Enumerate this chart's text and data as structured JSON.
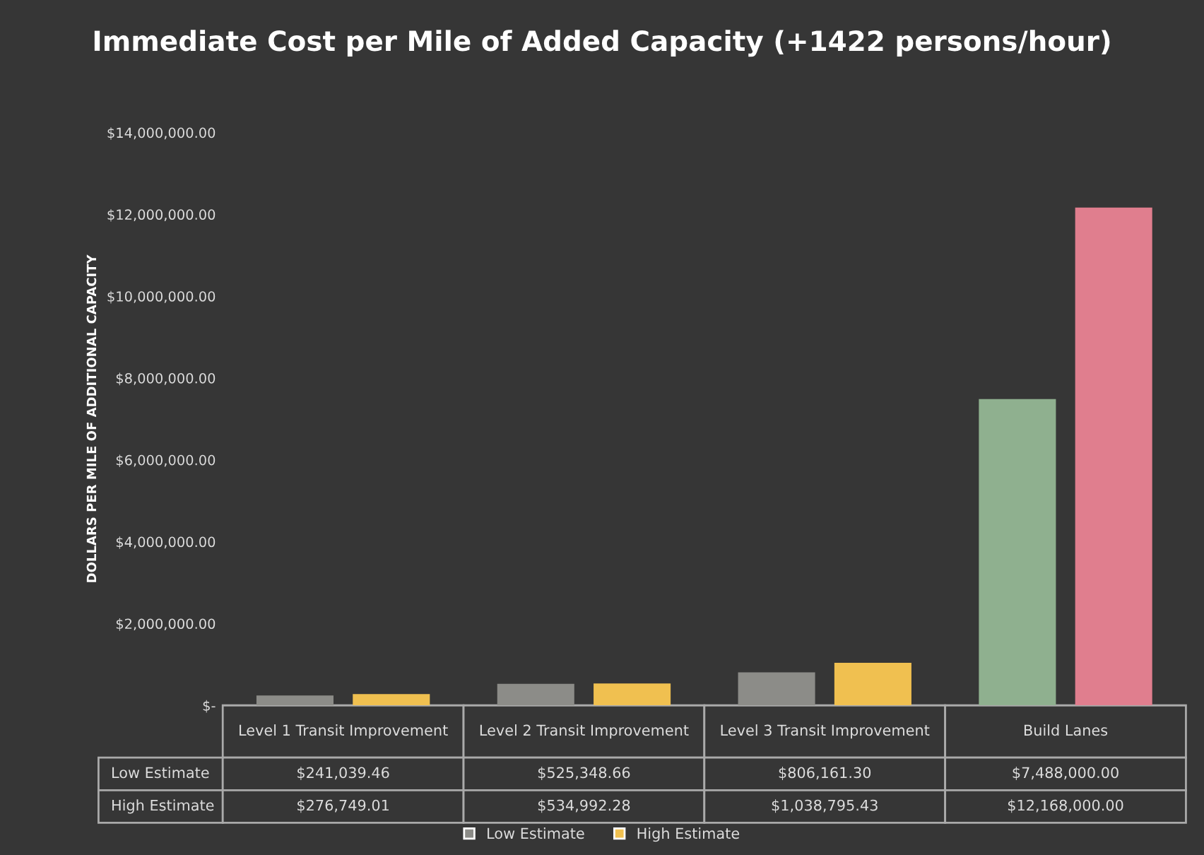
{
  "chart_data": {
    "type": "bar",
    "title": "Immediate Cost per Mile of Added Capacity (+1422 persons/hour)",
    "ylabel": "DOLLARS PER MILE OF ADDITIONAL CAPACITY",
    "categories": [
      "Level 1 Transit Improvement",
      "Level 2 Transit Improvement",
      "Level 3 Transit Improvement",
      "Build Lanes"
    ],
    "series": [
      {
        "name": "Low Estimate",
        "color": "#8c8c88",
        "colors": [
          "#8c8c88",
          "#8c8c88",
          "#8c8c88",
          "#8fb08f"
        ],
        "values": [
          241039.46,
          525348.66,
          806161.3,
          7488000.0
        ],
        "value_labels": [
          "$241,039.46",
          "$525,348.66",
          "$806,161.30",
          "$7,488,000.00"
        ]
      },
      {
        "name": "High Estimate",
        "color": "#f0c050",
        "colors": [
          "#f0c050",
          "#f0c050",
          "#f0c050",
          "#e07e8e"
        ],
        "values": [
          276749.01,
          534992.28,
          1038795.43,
          12168000.0
        ],
        "value_labels": [
          "$276,749.01",
          "$534,992.28",
          "$1,038,795.43",
          "$12,168,000.00"
        ]
      }
    ],
    "ylim": [
      0,
      14000000
    ],
    "yticks": [
      {
        "value": 0,
        "label": "$-"
      },
      {
        "value": 2000000,
        "label": "$2,000,000.00"
      },
      {
        "value": 4000000,
        "label": "$4,000,000.00"
      },
      {
        "value": 6000000,
        "label": "$6,000,000.00"
      },
      {
        "value": 8000000,
        "label": "$8,000,000.00"
      },
      {
        "value": 10000000,
        "label": "$10,000,000.00"
      },
      {
        "value": 12000000,
        "label": "$12,000,000.00"
      },
      {
        "value": 14000000,
        "label": "$14,000,000.00"
      }
    ],
    "grid": false,
    "legend": "bottom"
  }
}
